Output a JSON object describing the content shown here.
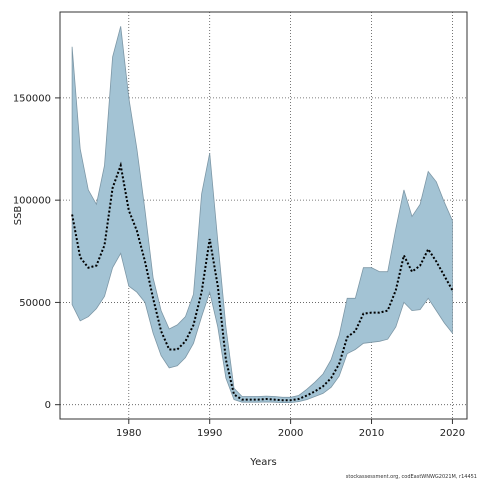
{
  "chart_data": {
    "type": "area",
    "xlabel": "Years",
    "ylabel": "SSB",
    "xlim": [
      1971.5,
      2021.8
    ],
    "ylim": [
      -7000,
      192000
    ],
    "xticks": [
      1980,
      1990,
      2000,
      2010,
      2020
    ],
    "yticks": [
      0,
      50000,
      100000,
      150000
    ],
    "grid": true,
    "grid_style": "dotted",
    "band_color": "#a3c3d4",
    "band_edge_color": "#7d97a6",
    "line_color": "#000000",
    "credit": "stockassessment.org, codEastWNWG2021M, r14451",
    "series": [
      {
        "x": [
          1973,
          1974,
          1975,
          1976,
          1977,
          1978,
          1979,
          1980,
          1981,
          1982,
          1983,
          1984,
          1985,
          1986,
          1987,
          1988,
          1989,
          1990,
          1991,
          1992,
          1993,
          1994,
          1995,
          1996,
          1997,
          1998,
          1999,
          2000,
          2001,
          2002,
          2003,
          2004,
          2005,
          2006,
          2007,
          2008,
          2009,
          2010,
          2011,
          2012,
          2013,
          2014,
          2015,
          2016,
          2017,
          2018,
          2019,
          2020
        ],
        "estimate": [
          93000,
          72000,
          67000,
          68000,
          78000,
          106000,
          117000,
          95000,
          85000,
          70000,
          52000,
          36000,
          27000,
          27000,
          31000,
          39000,
          55000,
          81000,
          58000,
          22000,
          5000,
          2500,
          2500,
          2500,
          2800,
          2500,
          2200,
          2200,
          2800,
          4500,
          6500,
          9000,
          13000,
          20000,
          33000,
          36000,
          44500,
          45000,
          45000,
          46000,
          56000,
          73000,
          65000,
          68000,
          76000,
          70000,
          63000,
          56000
        ],
        "lower": [
          49000,
          41000,
          43000,
          47000,
          53000,
          67000,
          74000,
          58000,
          55000,
          50000,
          35000,
          24000,
          18000,
          19000,
          23000,
          30000,
          43000,
          55000,
          38000,
          13000,
          2500,
          1200,
          1200,
          1200,
          1300,
          1200,
          1000,
          1000,
          1500,
          2500,
          4000,
          5500,
          8500,
          14000,
          25000,
          27000,
          30000,
          30500,
          31000,
          32000,
          38000,
          50000,
          46000,
          46500,
          52000,
          46000,
          40000,
          35000
        ],
        "upper": [
          175000,
          125000,
          105000,
          98000,
          117000,
          170000,
          185000,
          150000,
          125000,
          95000,
          62000,
          46000,
          37000,
          39000,
          43000,
          54000,
          103000,
          123000,
          80000,
          38000,
          8000,
          4000,
          4000,
          4000,
          4200,
          4000,
          3600,
          3600,
          4500,
          7500,
          11000,
          15000,
          22000,
          34000,
          52000,
          52000,
          67000,
          67000,
          65000,
          65000,
          86000,
          105000,
          92000,
          98000,
          114000,
          109000,
          99000,
          90000
        ]
      }
    ]
  }
}
